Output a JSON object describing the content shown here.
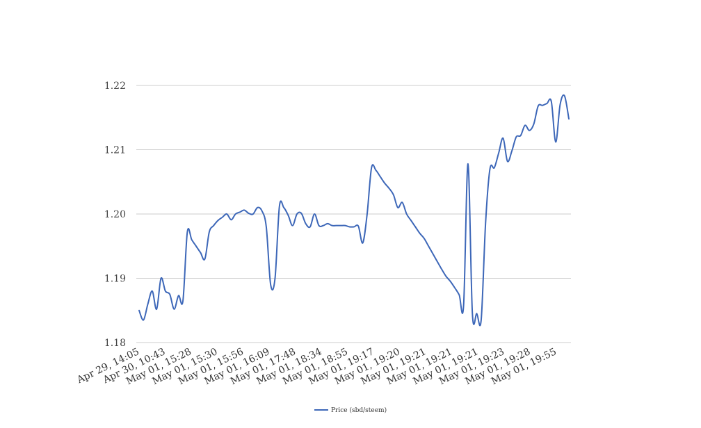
{
  "chart_data": {
    "type": "line",
    "title": "",
    "xlabel": "",
    "ylabel": "",
    "ylim": [
      1.18,
      1.22
    ],
    "y_ticks": [
      "1.18",
      "1.19",
      "1.20",
      "1.21",
      "1.22"
    ],
    "grid": true,
    "legend_position": "bottom-center",
    "x_tick_labels": [
      "Apr 29, 14:05",
      "Apr 30, 10:43",
      "May 01, 15:28",
      "May 01, 15:30",
      "May 01, 15:56",
      "May 01, 16:09",
      "May 01, 17:48",
      "May 01, 18:34",
      "May 01, 18:55",
      "May 01, 19:17",
      "May 01, 19:20",
      "May 01, 19:21",
      "May 01, 19:21",
      "May 01, 19:21",
      "May 01, 19:23",
      "May 01, 19:28",
      "May 01, 19:55"
    ],
    "series": [
      {
        "name": "Price (sbd/steem)",
        "color": "#3d67b8",
        "values": [
          1.185,
          1.1835,
          1.186,
          1.188,
          1.1852,
          1.19,
          1.188,
          1.1875,
          1.1852,
          1.1873,
          1.1865,
          1.1972,
          1.196,
          1.195,
          1.194,
          1.193,
          1.1972,
          1.1982,
          1.199,
          1.1995,
          1.2,
          1.1991,
          1.2,
          1.2003,
          1.2006,
          1.2001,
          1.2,
          1.201,
          1.2005,
          1.198,
          1.189,
          1.19,
          1.2012,
          1.201,
          1.1998,
          1.1982,
          1.2,
          1.2001,
          1.1985,
          1.198,
          1.2,
          1.1982,
          1.1982,
          1.1985,
          1.1982,
          1.1982,
          1.1982,
          1.1982,
          1.198,
          1.198,
          1.1981,
          1.1955,
          1.2,
          1.2072,
          1.2068,
          1.2058,
          1.2048,
          1.204,
          1.203,
          1.201,
          1.2018,
          1.2,
          1.199,
          1.198,
          1.197,
          1.1962,
          1.195,
          1.1938,
          1.1926,
          1.1914,
          1.1903,
          1.1895,
          1.1885,
          1.1874,
          1.1858,
          1.2078,
          1.1845,
          1.1845,
          1.1835,
          1.1985,
          1.207,
          1.2072,
          1.2095,
          1.2118,
          1.2082,
          1.2098,
          1.212,
          1.2122,
          1.2138,
          1.213,
          1.214,
          1.2168,
          1.2169,
          1.2172,
          1.2175,
          1.2112,
          1.217,
          1.2184,
          1.2148
        ]
      }
    ]
  }
}
